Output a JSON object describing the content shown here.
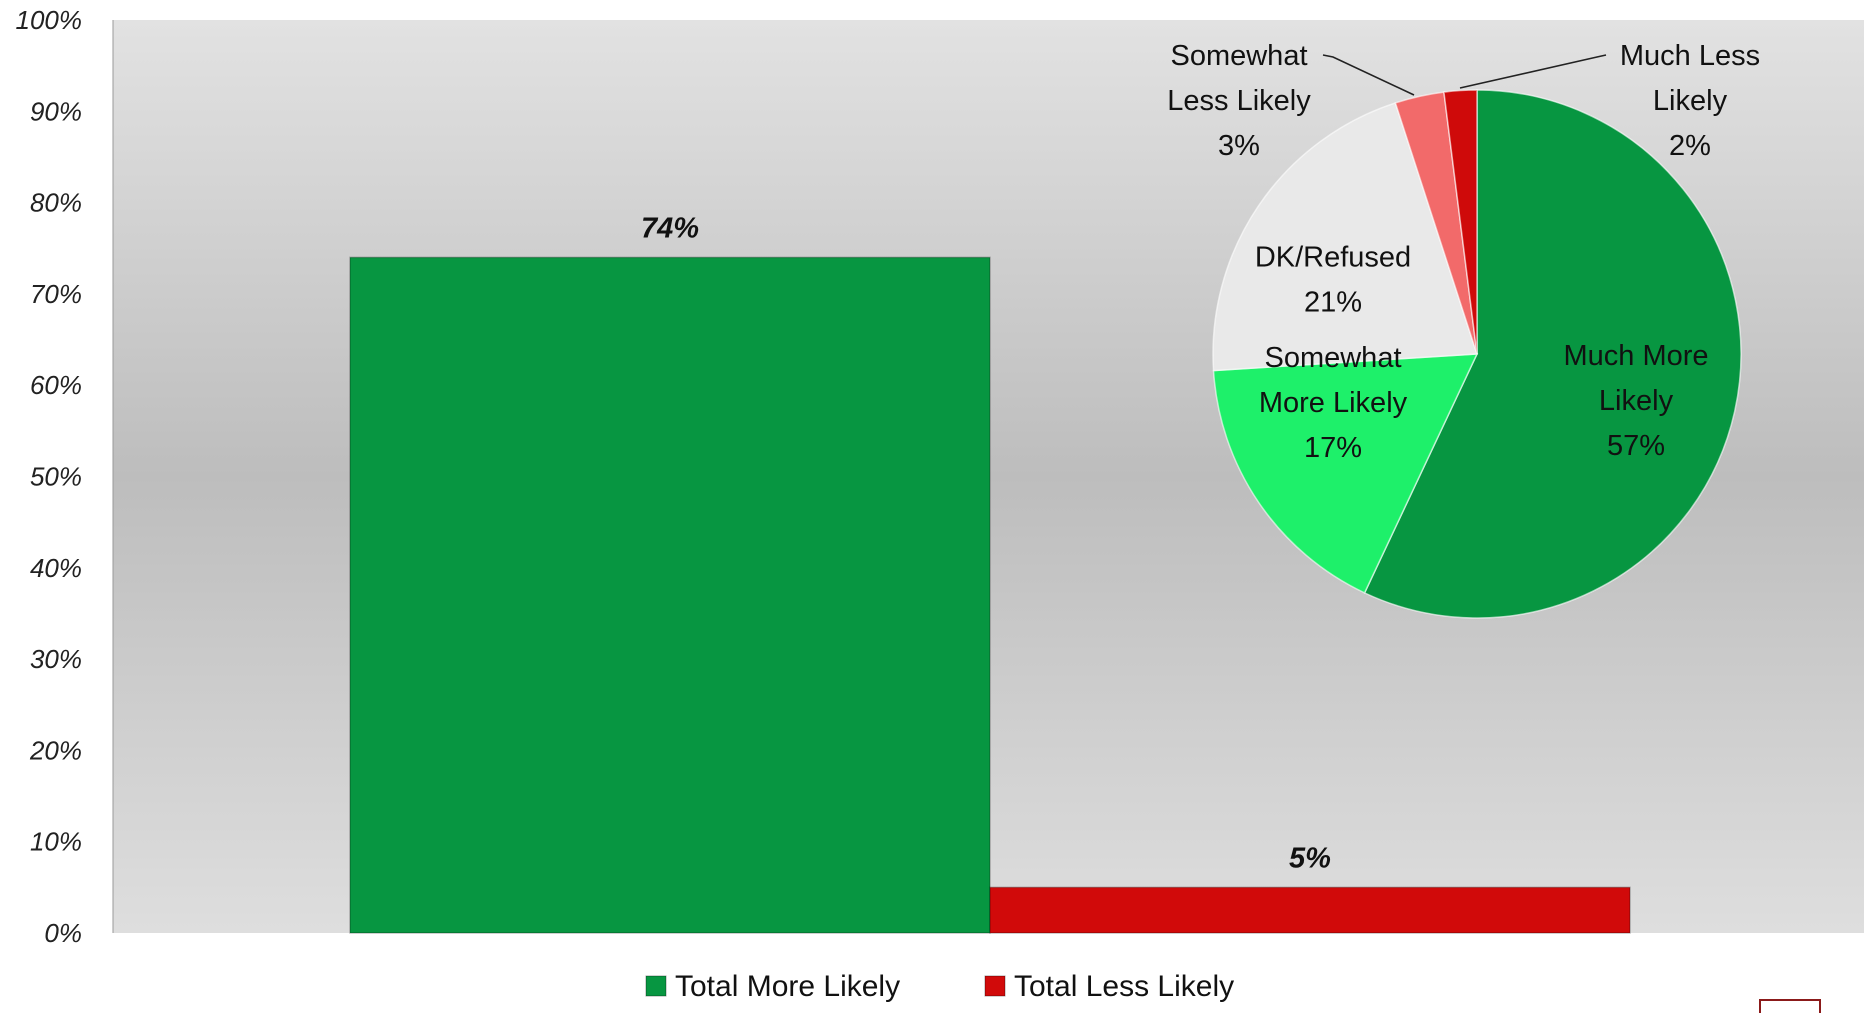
{
  "chart_data": [
    {
      "type": "bar",
      "title": "",
      "xlabel": "",
      "ylabel": "",
      "ylim": [
        0,
        100
      ],
      "yticks": [
        "0%",
        "10%",
        "20%",
        "30%",
        "40%",
        "50%",
        "60%",
        "70%",
        "80%",
        "90%",
        "100%"
      ],
      "grid": false,
      "legend_position": "bottom",
      "series": [
        {
          "name": "Total More Likely",
          "value": 74,
          "label": "74%",
          "color": "#079641"
        },
        {
          "name": "Total Less Likely",
          "value": 5,
          "label": "5%",
          "color": "#d10a0a"
        }
      ]
    },
    {
      "type": "pie",
      "title": "",
      "slices": [
        {
          "lines": [
            "Much More",
            "Likely",
            "57%"
          ],
          "value": 57,
          "color": "#079641"
        },
        {
          "lines": [
            "Somewhat",
            "More Likely",
            "17%"
          ],
          "value": 17,
          "color": "#1ef06a"
        },
        {
          "lines": [
            "DK/Refused",
            "21%"
          ],
          "value": 21,
          "color": "#e9e9e9"
        },
        {
          "lines": [
            "Somewhat",
            "Less Likely",
            "3%"
          ],
          "value": 3,
          "color": "#f26a6a"
        },
        {
          "lines": [
            "Much Less",
            "Likely",
            "2%"
          ],
          "value": 2,
          "color": "#cf0a0a"
        }
      ]
    }
  ]
}
